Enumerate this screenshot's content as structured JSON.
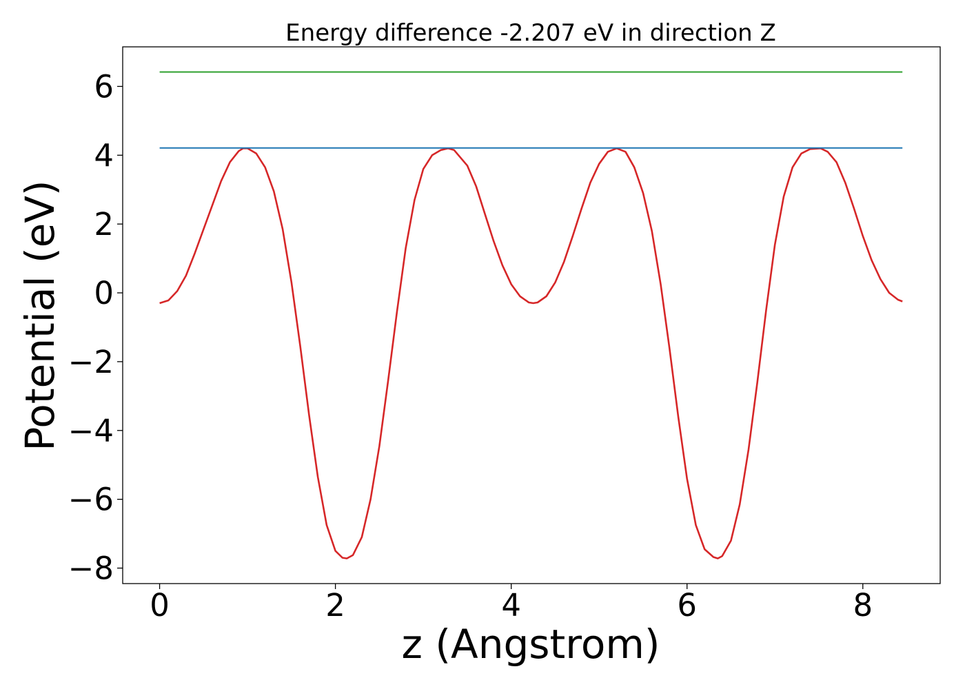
{
  "chart_data": {
    "type": "line",
    "title": "Energy difference -2.207 eV in direction Z",
    "xlabel": "z (Angstrom)",
    "ylabel": "Potential (eV)",
    "xlim": [
      -0.42,
      8.88
    ],
    "ylim": [
      -8.45,
      7.15
    ],
    "xticks": [
      0,
      2,
      4,
      6,
      8
    ],
    "xtick_labels": [
      "0",
      "2",
      "4",
      "6",
      "8"
    ],
    "yticks": [
      -8,
      -6,
      -4,
      -2,
      0,
      2,
      4,
      6
    ],
    "ytick_labels": [
      "−8",
      "−6",
      "−4",
      "−2",
      "0",
      "2",
      "4",
      "6"
    ],
    "grid": false,
    "legend": "none",
    "series": [
      {
        "color": "#d62728",
        "points": [
          [
            0.0,
            -0.3
          ],
          [
            0.1,
            -0.22
          ],
          [
            0.2,
            0.05
          ],
          [
            0.3,
            0.5
          ],
          [
            0.4,
            1.15
          ],
          [
            0.5,
            1.85
          ],
          [
            0.6,
            2.55
          ],
          [
            0.7,
            3.25
          ],
          [
            0.8,
            3.8
          ],
          [
            0.9,
            4.12
          ],
          [
            0.95,
            4.2
          ],
          [
            1.0,
            4.2
          ],
          [
            1.1,
            4.05
          ],
          [
            1.2,
            3.65
          ],
          [
            1.3,
            2.95
          ],
          [
            1.4,
            1.85
          ],
          [
            1.5,
            0.3
          ],
          [
            1.6,
            -1.55
          ],
          [
            1.7,
            -3.55
          ],
          [
            1.8,
            -5.35
          ],
          [
            1.9,
            -6.75
          ],
          [
            2.0,
            -7.5
          ],
          [
            2.08,
            -7.7
          ],
          [
            2.13,
            -7.72
          ],
          [
            2.2,
            -7.62
          ],
          [
            2.3,
            -7.1
          ],
          [
            2.4,
            -6.0
          ],
          [
            2.5,
            -4.45
          ],
          [
            2.6,
            -2.55
          ],
          [
            2.7,
            -0.55
          ],
          [
            2.8,
            1.3
          ],
          [
            2.9,
            2.7
          ],
          [
            3.0,
            3.6
          ],
          [
            3.1,
            4.0
          ],
          [
            3.2,
            4.15
          ],
          [
            3.28,
            4.2
          ],
          [
            3.35,
            4.15
          ],
          [
            3.5,
            3.7
          ],
          [
            3.6,
            3.1
          ],
          [
            3.7,
            2.3
          ],
          [
            3.8,
            1.5
          ],
          [
            3.9,
            0.8
          ],
          [
            4.0,
            0.25
          ],
          [
            4.1,
            -0.1
          ],
          [
            4.2,
            -0.28
          ],
          [
            4.25,
            -0.3
          ],
          [
            4.3,
            -0.28
          ],
          [
            4.4,
            -0.1
          ],
          [
            4.5,
            0.3
          ],
          [
            4.6,
            0.9
          ],
          [
            4.7,
            1.65
          ],
          [
            4.8,
            2.45
          ],
          [
            4.9,
            3.2
          ],
          [
            5.0,
            3.75
          ],
          [
            5.1,
            4.1
          ],
          [
            5.2,
            4.2
          ],
          [
            5.3,
            4.1
          ],
          [
            5.4,
            3.65
          ],
          [
            5.5,
            2.9
          ],
          [
            5.6,
            1.8
          ],
          [
            5.7,
            0.25
          ],
          [
            5.8,
            -1.6
          ],
          [
            5.9,
            -3.6
          ],
          [
            6.0,
            -5.4
          ],
          [
            6.1,
            -6.75
          ],
          [
            6.2,
            -7.45
          ],
          [
            6.3,
            -7.68
          ],
          [
            6.35,
            -7.72
          ],
          [
            6.4,
            -7.65
          ],
          [
            6.5,
            -7.2
          ],
          [
            6.6,
            -6.15
          ],
          [
            6.7,
            -4.55
          ],
          [
            6.8,
            -2.6
          ],
          [
            6.9,
            -0.5
          ],
          [
            7.0,
            1.4
          ],
          [
            7.1,
            2.8
          ],
          [
            7.2,
            3.65
          ],
          [
            7.3,
            4.05
          ],
          [
            7.4,
            4.18
          ],
          [
            7.52,
            4.2
          ],
          [
            7.6,
            4.1
          ],
          [
            7.7,
            3.8
          ],
          [
            7.8,
            3.2
          ],
          [
            7.9,
            2.45
          ],
          [
            8.0,
            1.65
          ],
          [
            8.1,
            0.95
          ],
          [
            8.2,
            0.4
          ],
          [
            8.3,
            0.0
          ],
          [
            8.4,
            -0.2
          ],
          [
            8.45,
            -0.25
          ]
        ]
      },
      {
        "color": "#1f77b4",
        "points": [
          [
            0.0,
            4.21
          ],
          [
            8.45,
            4.21
          ]
        ]
      },
      {
        "color": "#2ca02c",
        "points": [
          [
            0.0,
            6.42
          ],
          [
            8.45,
            6.42
          ]
        ]
      }
    ]
  }
}
